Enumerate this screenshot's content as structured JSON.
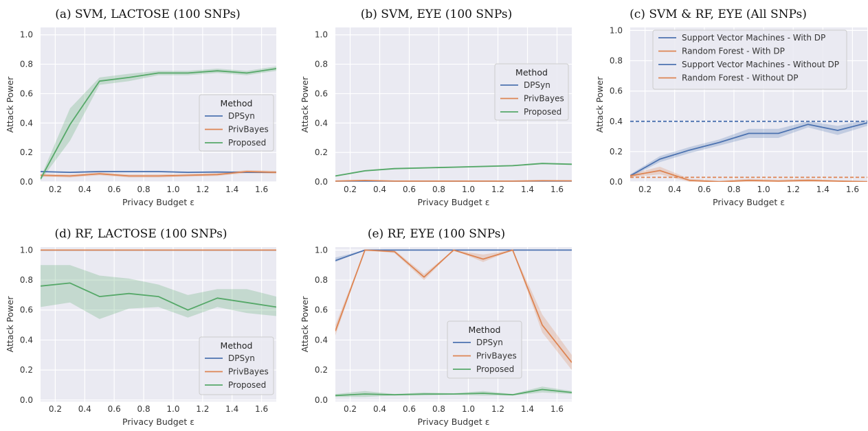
{
  "chart_data": [
    {
      "type": "line",
      "title": "(a) SVM, LACTOSE (100 SNPs)",
      "xlabel": "Privacy Budget ε",
      "ylabel": "Attack Power",
      "xlim": [
        0.1,
        1.7
      ],
      "ylim": [
        0,
        1.05
      ],
      "xticks": [
        "0.2",
        "0.4",
        "0.6",
        "0.8",
        "1.0",
        "1.2",
        "1.4",
        "1.6"
      ],
      "yticks": [
        "0.0",
        "0.2",
        "0.4",
        "0.6",
        "0.8",
        "1.0"
      ],
      "grid": true,
      "legend": {
        "title": "Method",
        "position": "center-right",
        "entries": [
          "DPSyn",
          "PrivBayes",
          "Proposed"
        ]
      },
      "x": [
        0.1,
        0.3,
        0.5,
        0.7,
        0.9,
        1.1,
        1.3,
        1.5,
        1.7
      ],
      "series": [
        {
          "name": "DPSyn",
          "color": "#4c72b0",
          "values": [
            0.07,
            0.065,
            0.07,
            0.07,
            0.07,
            0.065,
            0.067,
            0.065,
            0.065
          ],
          "lower": [
            0.065,
            0.06,
            0.065,
            0.065,
            0.065,
            0.06,
            0.062,
            0.06,
            0.06
          ],
          "upper": [
            0.075,
            0.07,
            0.075,
            0.075,
            0.075,
            0.07,
            0.072,
            0.07,
            0.07
          ]
        },
        {
          "name": "PrivBayes",
          "color": "#dd8452",
          "values": [
            0.045,
            0.04,
            0.055,
            0.04,
            0.04,
            0.045,
            0.05,
            0.07,
            0.065
          ],
          "lower": [
            0.035,
            0.03,
            0.045,
            0.03,
            0.03,
            0.035,
            0.04,
            0.06,
            0.055
          ],
          "upper": [
            0.055,
            0.05,
            0.065,
            0.05,
            0.05,
            0.055,
            0.06,
            0.08,
            0.075
          ]
        },
        {
          "name": "Proposed",
          "color": "#55a868",
          "values": [
            0.02,
            0.39,
            0.685,
            0.71,
            0.74,
            0.74,
            0.755,
            0.74,
            0.77
          ],
          "lower": [
            0.01,
            0.28,
            0.66,
            0.685,
            0.725,
            0.725,
            0.74,
            0.725,
            0.755
          ],
          "upper": [
            0.03,
            0.5,
            0.71,
            0.735,
            0.755,
            0.755,
            0.77,
            0.755,
            0.785
          ]
        }
      ]
    },
    {
      "type": "line",
      "title": "(b) SVM, EYE (100 SNPs)",
      "xlabel": "Privacy Budget ε",
      "ylabel": "Attack Power",
      "xlim": [
        0.1,
        1.7
      ],
      "ylim": [
        0,
        1.05
      ],
      "xticks": [
        "0.2",
        "0.4",
        "0.6",
        "0.8",
        "1.0",
        "1.2",
        "1.4",
        "1.6"
      ],
      "yticks": [
        "0.0",
        "0.2",
        "0.4",
        "0.6",
        "0.8",
        "1.0"
      ],
      "grid": true,
      "legend": {
        "title": "Method",
        "position": "center-right",
        "entries": [
          "DPSyn",
          "PrivBayes",
          "Proposed"
        ]
      },
      "x": [
        0.1,
        0.3,
        0.5,
        0.7,
        0.9,
        1.1,
        1.3,
        1.5,
        1.7
      ],
      "series": [
        {
          "name": "DPSyn",
          "color": "#4c72b0",
          "values": [
            0.005,
            0.005,
            0.005,
            0.005,
            0.005,
            0.005,
            0.005,
            0.005,
            0.005
          ]
        },
        {
          "name": "PrivBayes",
          "color": "#dd8452",
          "values": [
            0.005,
            0.01,
            0.005,
            0.005,
            0.005,
            0.005,
            0.005,
            0.008,
            0.007
          ]
        },
        {
          "name": "Proposed",
          "color": "#55a868",
          "values": [
            0.04,
            0.075,
            0.09,
            0.095,
            0.1,
            0.105,
            0.11,
            0.125,
            0.12
          ],
          "lower": [
            0.035,
            0.07,
            0.085,
            0.09,
            0.095,
            0.1,
            0.105,
            0.12,
            0.115
          ],
          "upper": [
            0.045,
            0.08,
            0.095,
            0.1,
            0.105,
            0.11,
            0.115,
            0.13,
            0.125
          ]
        }
      ]
    },
    {
      "type": "line",
      "title": "(c) SVM & RF, EYE (All SNPs)",
      "xlabel": "Privacy Budget ε",
      "ylabel": "Attack Power",
      "xlim": [
        0.1,
        1.7
      ],
      "ylim": [
        0,
        1.02
      ],
      "xticks": [
        "0.2",
        "0.4",
        "0.6",
        "0.8",
        "1.0",
        "1.2",
        "1.4",
        "1.6"
      ],
      "yticks": [
        "0.0",
        "0.2",
        "0.4",
        "0.6",
        "0.8",
        "1.0"
      ],
      "grid": true,
      "legend": {
        "title": "",
        "position": "top-center",
        "entries": [
          "Support Vector Machines - With DP",
          "Random Forest - With DP",
          "Support Vector Machines - Without DP",
          "Random Forest - Without DP"
        ]
      },
      "x": [
        0.1,
        0.3,
        0.5,
        0.7,
        0.9,
        1.1,
        1.3,
        1.5,
        1.7
      ],
      "series": [
        {
          "name": "Support Vector Machines - With DP",
          "color": "#4c72b0",
          "values": [
            0.04,
            0.15,
            0.21,
            0.26,
            0.32,
            0.32,
            0.38,
            0.34,
            0.39
          ],
          "lower": [
            0.03,
            0.13,
            0.19,
            0.24,
            0.29,
            0.29,
            0.36,
            0.31,
            0.37
          ],
          "upper": [
            0.05,
            0.17,
            0.23,
            0.28,
            0.35,
            0.35,
            0.4,
            0.37,
            0.41
          ]
        },
        {
          "name": "Random Forest - With DP",
          "color": "#dd8452",
          "values": [
            0.04,
            0.075,
            0.01,
            0.0,
            0.01,
            0.005,
            0.01,
            0.005,
            0.0
          ],
          "lower": [
            0.03,
            0.05,
            0.0,
            0.0,
            0.0,
            0.0,
            0.0,
            0.0,
            0.0
          ],
          "upper": [
            0.05,
            0.1,
            0.02,
            0.01,
            0.02,
            0.015,
            0.02,
            0.01,
            0.01
          ]
        },
        {
          "name": "Support Vector Machines - Without DP",
          "color": "#4c72b0",
          "dashed": true,
          "values": [
            0.4,
            0.4,
            0.4,
            0.4,
            0.4,
            0.4,
            0.4,
            0.4,
            0.4
          ]
        },
        {
          "name": "Random Forest - Without DP",
          "color": "#dd8452",
          "dashed": true,
          "values": [
            0.03,
            0.03,
            0.03,
            0.03,
            0.03,
            0.03,
            0.03,
            0.03,
            0.03
          ]
        }
      ]
    },
    {
      "type": "line",
      "title": "(d) RF, LACTOSE (100 SNPs)",
      "xlabel": "Privacy Budget ε",
      "ylabel": "Attack Power",
      "xlim": [
        0.1,
        1.7
      ],
      "ylim": [
        -0.01,
        1.02
      ],
      "xticks": [
        "0.2",
        "0.4",
        "0.6",
        "0.8",
        "1.0",
        "1.2",
        "1.4",
        "1.6"
      ],
      "yticks": [
        "0.0",
        "0.2",
        "0.4",
        "0.6",
        "0.8",
        "1.0"
      ],
      "grid": true,
      "legend": {
        "title": "Method",
        "position": "bottom-right",
        "entries": [
          "DPSyn",
          "PrivBayes",
          "Proposed"
        ]
      },
      "x": [
        0.1,
        0.3,
        0.5,
        0.7,
        0.9,
        1.1,
        1.3,
        1.5,
        1.7
      ],
      "series": [
        {
          "name": "DPSyn",
          "color": "#4c72b0",
          "values": [
            1,
            1,
            1,
            1,
            1,
            1,
            1,
            1,
            1
          ]
        },
        {
          "name": "PrivBayes",
          "color": "#dd8452",
          "values": [
            1,
            1,
            1,
            1,
            1,
            1,
            1,
            1,
            1
          ]
        },
        {
          "name": "Proposed",
          "color": "#55a868",
          "values": [
            0.76,
            0.78,
            0.69,
            0.71,
            0.69,
            0.6,
            0.68,
            0.65,
            0.62
          ],
          "lower": [
            0.62,
            0.65,
            0.54,
            0.61,
            0.62,
            0.55,
            0.62,
            0.58,
            0.56
          ],
          "upper": [
            0.9,
            0.9,
            0.83,
            0.81,
            0.77,
            0.7,
            0.74,
            0.74,
            0.69
          ]
        }
      ]
    },
    {
      "type": "line",
      "title": "(e) RF, EYE (100 SNPs)",
      "xlabel": "Privacy Budget ε",
      "ylabel": "Attack Power",
      "xlim": [
        0.1,
        1.7
      ],
      "ylim": [
        -0.01,
        1.02
      ],
      "xticks": [
        "0.2",
        "0.4",
        "0.6",
        "0.8",
        "1.0",
        "1.2",
        "1.4",
        "1.6"
      ],
      "yticks": [
        "0.0",
        "0.2",
        "0.4",
        "0.6",
        "0.8",
        "1.0"
      ],
      "grid": true,
      "legend": {
        "title": "Method",
        "position": "bottom-center",
        "entries": [
          "DPSyn",
          "PrivBayes",
          "Proposed"
        ]
      },
      "x": [
        0.1,
        0.3,
        0.5,
        0.7,
        0.9,
        1.1,
        1.3,
        1.5,
        1.7
      ],
      "series": [
        {
          "name": "DPSyn",
          "color": "#4c72b0",
          "values": [
            0.93,
            1,
            1,
            1,
            1,
            1,
            1,
            1,
            1
          ],
          "lower": [
            0.92,
            1,
            1,
            1,
            1,
            1,
            1,
            1,
            1
          ],
          "upper": [
            0.95,
            1,
            1,
            1,
            1,
            1,
            1,
            1,
            1
          ]
        },
        {
          "name": "PrivBayes",
          "color": "#dd8452",
          "values": [
            0.46,
            1,
            0.99,
            0.82,
            1,
            0.94,
            1,
            0.5,
            0.25
          ],
          "lower": [
            0.43,
            1,
            0.98,
            0.8,
            1,
            0.92,
            1,
            0.45,
            0.2
          ],
          "upper": [
            0.5,
            1,
            1,
            0.84,
            1,
            0.97,
            1,
            0.57,
            0.3
          ]
        },
        {
          "name": "Proposed",
          "color": "#55a868",
          "values": [
            0.03,
            0.04,
            0.035,
            0.04,
            0.04,
            0.045,
            0.035,
            0.07,
            0.05
          ],
          "lower": [
            0.02,
            0.02,
            0.03,
            0.03,
            0.035,
            0.03,
            0.03,
            0.05,
            0.04
          ],
          "upper": [
            0.04,
            0.06,
            0.04,
            0.05,
            0.045,
            0.06,
            0.04,
            0.09,
            0.06
          ]
        }
      ]
    }
  ]
}
